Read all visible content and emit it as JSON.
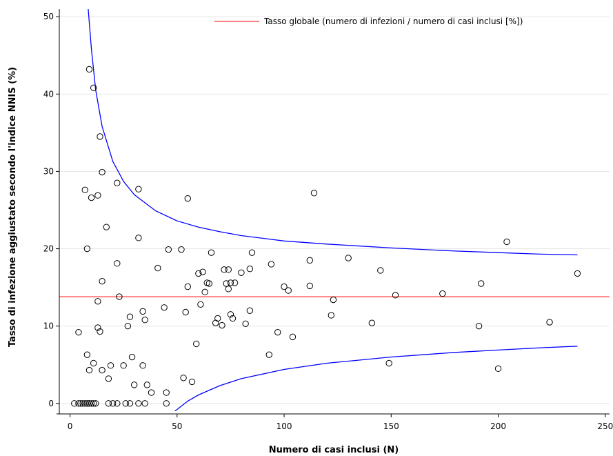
{
  "chart_data": {
    "type": "scatter",
    "title": "",
    "xlabel": "Numero di casi inclusi (N)",
    "ylabel": "Tasso di infezione aggiustato secondo l'indice NNIS (%)",
    "xlim": [
      -5,
      252
    ],
    "ylim": [
      -1,
      51
    ],
    "xticks": [
      0,
      50,
      100,
      150,
      200,
      250
    ],
    "yticks": [
      0,
      10,
      20,
      30,
      40,
      50
    ],
    "grid": "horizontal",
    "legend_position": "top-right",
    "reference_line": {
      "label": "Tasso globale (numero di infezioni / numero di casi inclusi [%])",
      "y": 13.8,
      "color": "#ff0000"
    },
    "control_limits": {
      "color": "#0000ff",
      "upper": {
        "x": [
          8.5,
          10,
          12,
          15,
          20,
          25,
          30,
          40,
          50,
          60,
          70,
          80,
          100,
          120,
          150,
          180,
          200,
          220,
          237
        ],
        "y": [
          51,
          45.8,
          40.5,
          35.8,
          31.3,
          28.7,
          27.0,
          24.9,
          23.6,
          22.8,
          22.2,
          21.7,
          21.0,
          20.6,
          20.1,
          19.7,
          19.5,
          19.3,
          19.2
        ]
      },
      "lower": {
        "x": [
          49,
          55,
          60,
          70,
          80,
          100,
          120,
          150,
          180,
          200,
          220,
          237
        ],
        "y": [
          -1,
          0.3,
          1.1,
          2.3,
          3.2,
          4.4,
          5.2,
          6.0,
          6.6,
          6.9,
          7.2,
          7.4
        ]
      }
    },
    "points": {
      "x": [
        2,
        4,
        5,
        6,
        7,
        8,
        9,
        10,
        11,
        12,
        18,
        20,
        22,
        26,
        28,
        32,
        35,
        45,
        4,
        7,
        8,
        9,
        11,
        13,
        14,
        15,
        8,
        9,
        10,
        11,
        13,
        13,
        14,
        15,
        15,
        17,
        18,
        19,
        22,
        22,
        23,
        25,
        27,
        28,
        29,
        30,
        32,
        32,
        34,
        34,
        35,
        36,
        38,
        41,
        44,
        45,
        46,
        52,
        53,
        54,
        55,
        55,
        57,
        59,
        60,
        61,
        62,
        63,
        64,
        65,
        66,
        68,
        69,
        71,
        72,
        73,
        74,
        74,
        75,
        75,
        76,
        77,
        80,
        82,
        84,
        84,
        85,
        93,
        94,
        97,
        100,
        102,
        104,
        112,
        112,
        114,
        122,
        123,
        130,
        141,
        145,
        149,
        152,
        174,
        191,
        192,
        200,
        204,
        224,
        237
      ],
      "y": [
        0,
        0,
        0,
        0,
        0,
        0,
        0,
        0,
        0,
        0,
        0,
        0,
        0,
        0,
        0,
        0,
        0,
        0,
        9.2,
        27.6,
        20,
        43.2,
        40.8,
        26.9,
        34.5,
        29.9,
        6.3,
        4.3,
        26.6,
        5.2,
        13.2,
        9.8,
        9.3,
        15.8,
        4.3,
        22.8,
        3.2,
        4.9,
        28.5,
        18.1,
        13.8,
        4.9,
        10,
        11.2,
        6,
        2.4,
        27.7,
        21.4,
        11.9,
        4.9,
        10.8,
        2.4,
        1.4,
        17.5,
        12.4,
        1.4,
        19.9,
        19.9,
        3.3,
        11.8,
        26.5,
        15.1,
        2.8,
        7.7,
        16.8,
        12.8,
        17,
        14.4,
        15.6,
        15.5,
        19.5,
        10.4,
        11,
        10.1,
        17.3,
        15.5,
        17.3,
        14.8,
        15.6,
        11.5,
        11,
        15.6,
        16.9,
        10.3,
        12,
        17.4,
        19.5,
        6.3,
        18,
        9.2,
        15.1,
        14.6,
        8.6,
        18.5,
        15.2,
        27.2,
        11.4,
        13.4,
        18.8,
        10.4,
        17.2,
        5.2,
        14,
        14.2,
        10,
        15.5,
        4.5,
        20.9,
        10.5,
        16.8
      ]
    }
  }
}
